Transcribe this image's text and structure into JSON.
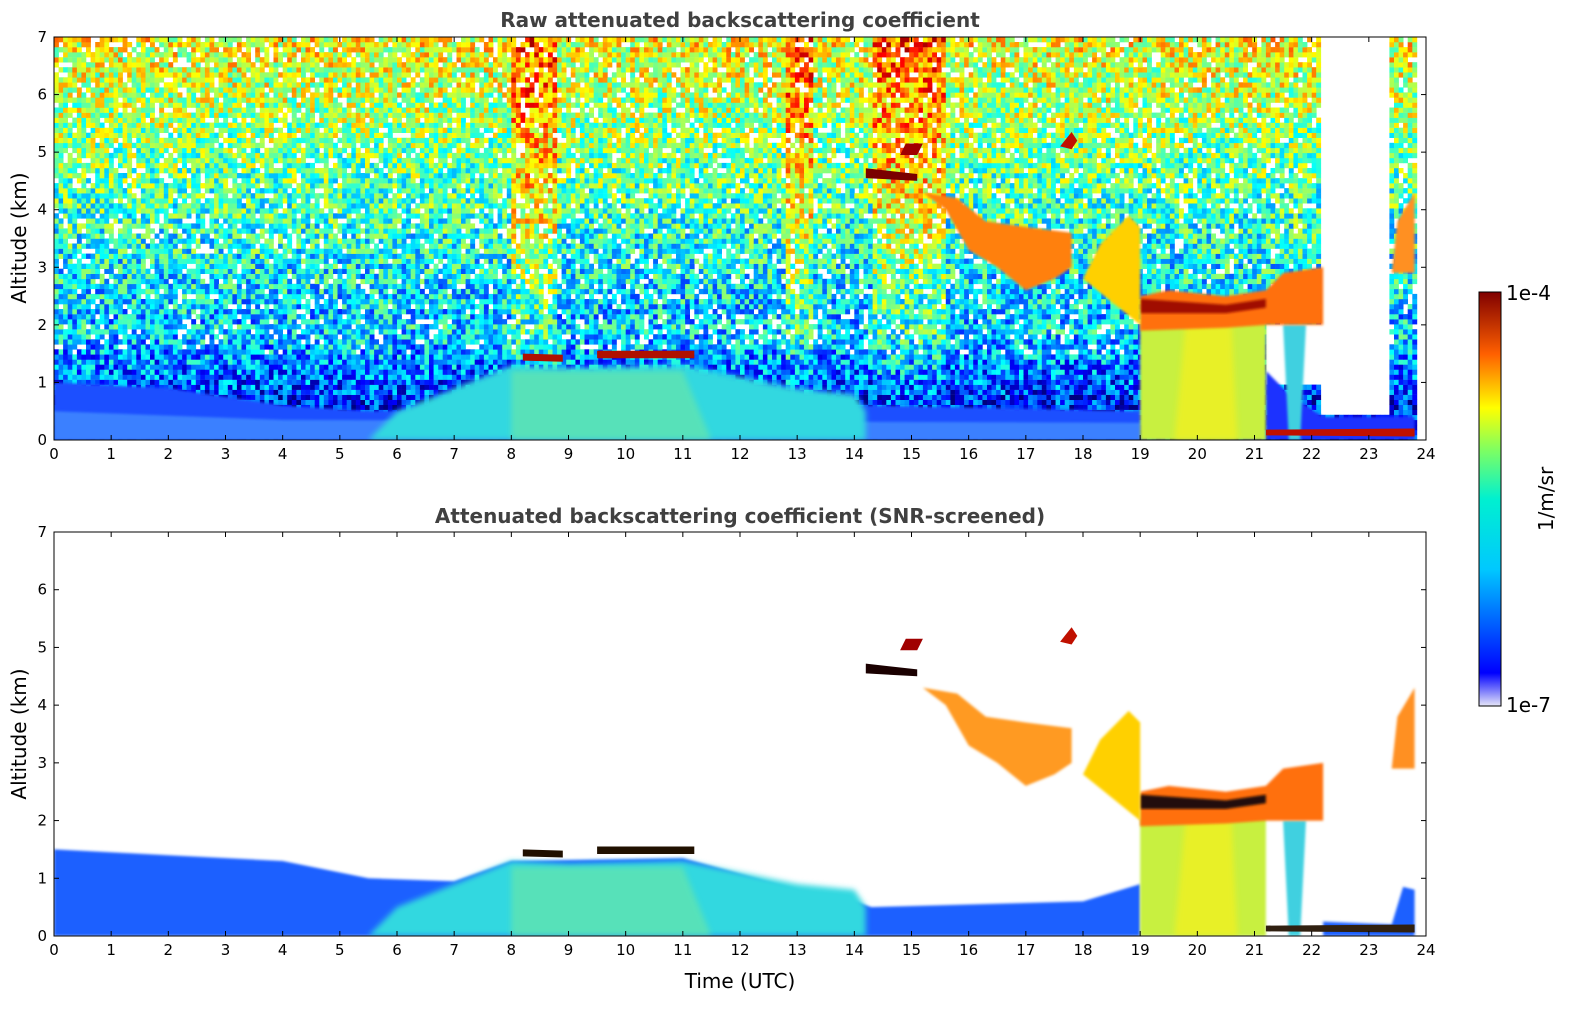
{
  "chart_data": [
    {
      "type": "heatmap",
      "title": "Raw attenuated backscattering coefficient",
      "xlabel": "",
      "ylabel": "Altitude (km)",
      "xlim": [
        0,
        24
      ],
      "ylim": [
        0,
        7
      ],
      "xticks": [
        "0",
        "1",
        "2",
        "3",
        "4",
        "5",
        "6",
        "7",
        "8",
        "9",
        "10",
        "11",
        "12",
        "13",
        "14",
        "15",
        "16",
        "17",
        "18",
        "19",
        "20",
        "21",
        "22",
        "23",
        "24"
      ],
      "yticks": [
        "0",
        "1",
        "2",
        "3",
        "4",
        "5",
        "6",
        "7"
      ],
      "screened": false,
      "features": [
        {
          "kind": "boundary-layer",
          "start": 0,
          "end": 19,
          "base": 0,
          "top": 1.3
        },
        {
          "kind": "aerosol-layer",
          "start": 5.5,
          "end": 14.2,
          "base": 0,
          "top": 1.3
        },
        {
          "kind": "cloud",
          "start": 8.2,
          "end": 8.9,
          "altitude": 1.45
        },
        {
          "kind": "cloud",
          "start": 9.5,
          "end": 11.2,
          "altitude": 1.5
        },
        {
          "kind": "cloud",
          "start": 14.2,
          "end": 15.2,
          "altitude": 4.7
        },
        {
          "kind": "cloud",
          "start": 15.2,
          "end": 17.8,
          "altitude": 3.6
        },
        {
          "kind": "cloud",
          "start": 17.7,
          "end": 17.9,
          "altitude": 5.2
        },
        {
          "kind": "cloud",
          "start": 18.0,
          "end": 18.9,
          "altitude": 3.3
        },
        {
          "kind": "cloud",
          "start": 19.0,
          "end": 22.2,
          "altitude": 2.3
        },
        {
          "kind": "cloud",
          "start": 23.4,
          "end": 23.8,
          "altitude": 3.5
        },
        {
          "kind": "precipitation",
          "start": 19.0,
          "end": 21.2,
          "base": 0,
          "top": 2.2
        },
        {
          "kind": "low-cloud",
          "start": 22.2,
          "end": 23.8,
          "altitude": 0.15
        }
      ]
    },
    {
      "type": "heatmap",
      "title": "Attenuated backscattering coefficient (SNR-screened)",
      "xlabel": "Time (UTC)",
      "ylabel": "Altitude (km)",
      "xlim": [
        0,
        24
      ],
      "ylim": [
        0,
        7
      ],
      "xticks": [
        "0",
        "1",
        "2",
        "3",
        "4",
        "5",
        "6",
        "7",
        "8",
        "9",
        "10",
        "11",
        "12",
        "13",
        "14",
        "15",
        "16",
        "17",
        "18",
        "19",
        "20",
        "21",
        "22",
        "23",
        "24"
      ],
      "yticks": [
        "0",
        "1",
        "2",
        "3",
        "4",
        "5",
        "6",
        "7"
      ],
      "screened": true
    }
  ],
  "colorbar": {
    "label": "1/m/sr",
    "max_label": "1e-4",
    "min_label": "1e-7",
    "range": [
      1e-07,
      0.0001
    ],
    "scale": "log",
    "colormap": "jet"
  }
}
